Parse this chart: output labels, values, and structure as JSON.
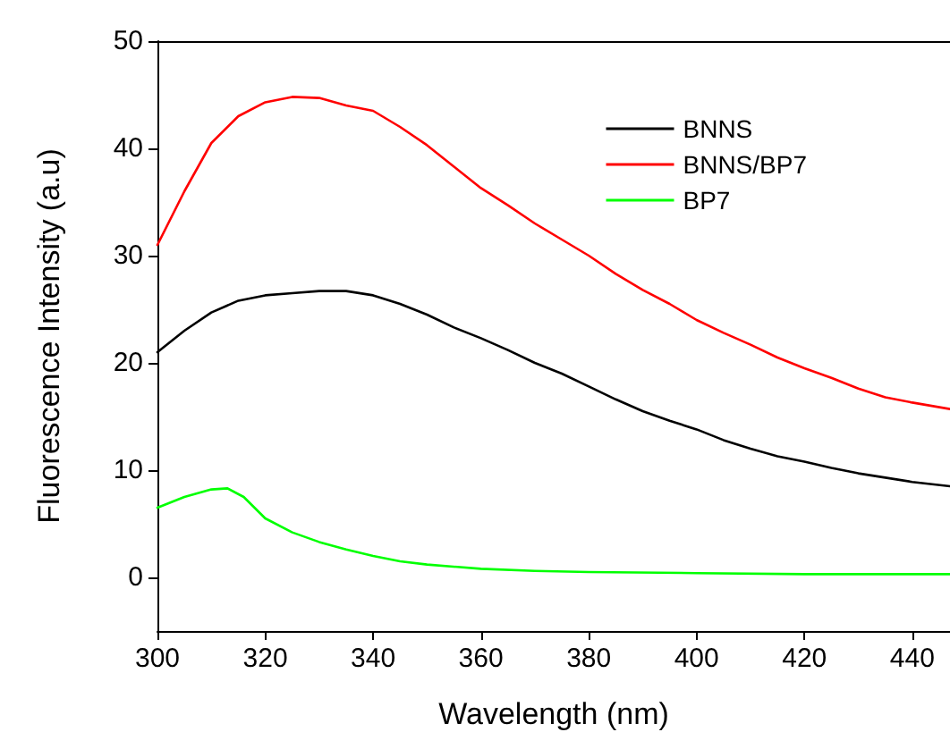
{
  "chart_data": {
    "type": "line",
    "xlabel": "Wavelength (nm)",
    "ylabel": "Fluorescence Intensity (a.u)",
    "xlim": [
      300,
      447
    ],
    "xticks": [
      300,
      320,
      340,
      360,
      380,
      400,
      420,
      440
    ],
    "ylim": [
      -5,
      50
    ],
    "yticks": [
      0,
      10,
      20,
      30,
      40,
      50
    ],
    "grid": false,
    "legend": "top right",
    "marker": "none",
    "line_style": "solid",
    "series": [
      {
        "name": "BNNS",
        "color": "#000000",
        "x": [
          300,
          305,
          310,
          315,
          320,
          325,
          330,
          335,
          340,
          345,
          350,
          355,
          360,
          365,
          370,
          375,
          380,
          385,
          390,
          395,
          400,
          405,
          410,
          415,
          420,
          425,
          430,
          435,
          440,
          447
        ],
        "values": [
          21,
          23,
          24.7,
          25.8,
          26.3,
          26.5,
          26.7,
          26.7,
          26.3,
          25.5,
          24.5,
          23.3,
          22.3,
          21.2,
          20,
          19,
          17.8,
          16.6,
          15.5,
          14.6,
          13.8,
          12.8,
          12,
          11.3,
          10.8,
          10.2,
          9.7,
          9.3,
          8.9,
          8.5
        ]
      },
      {
        "name": "BNNS/BP7",
        "color": "#ff0000",
        "x": [
          300,
          305,
          310,
          315,
          320,
          325,
          330,
          335,
          340,
          345,
          350,
          355,
          360,
          365,
          370,
          375,
          380,
          385,
          390,
          395,
          400,
          405,
          410,
          415,
          420,
          425,
          430,
          435,
          440,
          447
        ],
        "values": [
          31,
          36,
          40.5,
          43,
          44.3,
          44.8,
          44.7,
          44,
          43.5,
          42,
          40.3,
          38.3,
          36.3,
          34.7,
          33,
          31.5,
          30,
          28.3,
          26.8,
          25.5,
          24,
          22.8,
          21.7,
          20.5,
          19.5,
          18.6,
          17.6,
          16.8,
          16.3,
          15.7
        ]
      },
      {
        "name": "BP7",
        "color": "#00ff00",
        "x": [
          300,
          305,
          310,
          313,
          316,
          320,
          325,
          330,
          335,
          340,
          345,
          350,
          360,
          370,
          380,
          400,
          420,
          447
        ],
        "values": [
          6.5,
          7.5,
          8.2,
          8.3,
          7.5,
          5.5,
          4.2,
          3.3,
          2.6,
          2,
          1.5,
          1.2,
          0.8,
          0.6,
          0.5,
          0.4,
          0.3,
          0.3
        ]
      }
    ]
  }
}
